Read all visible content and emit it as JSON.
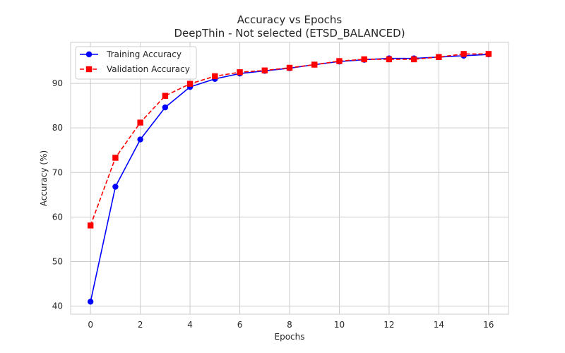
{
  "chart_data": {
    "type": "line",
    "title": "Accuracy vs Epochs",
    "subtitle": "DeepThin - Not selected (ETSD_BALANCED)",
    "xlabel": "Epochs",
    "ylabel": "Accuracy (%)",
    "xlim": [
      -0.8,
      16.8
    ],
    "ylim": [
      38.2,
      99.2
    ],
    "xticks": [
      0,
      2,
      4,
      6,
      8,
      10,
      12,
      14,
      16
    ],
    "yticks": [
      40,
      50,
      60,
      70,
      80,
      90
    ],
    "grid": true,
    "legend": "top-left",
    "x": [
      0,
      1,
      2,
      3,
      4,
      5,
      6,
      7,
      8,
      9,
      10,
      11,
      12,
      13,
      14,
      15,
      16
    ],
    "series": [
      {
        "name": "Training Accuracy",
        "color": "#0000ff",
        "linestyle": "solid",
        "marker": "circle",
        "values": [
          41.0,
          66.8,
          77.4,
          84.6,
          89.2,
          91.0,
          92.2,
          92.8,
          93.4,
          94.2,
          94.9,
          95.3,
          95.6,
          95.6,
          95.9,
          96.2,
          96.5
        ]
      },
      {
        "name": "Validation Accuracy",
        "color": "#ff0000",
        "linestyle": "dashed",
        "marker": "square",
        "values": [
          58.1,
          73.3,
          81.2,
          87.2,
          89.9,
          91.6,
          92.5,
          92.9,
          93.5,
          94.2,
          95.0,
          95.4,
          95.4,
          95.4,
          95.9,
          96.6,
          96.6
        ]
      }
    ]
  }
}
